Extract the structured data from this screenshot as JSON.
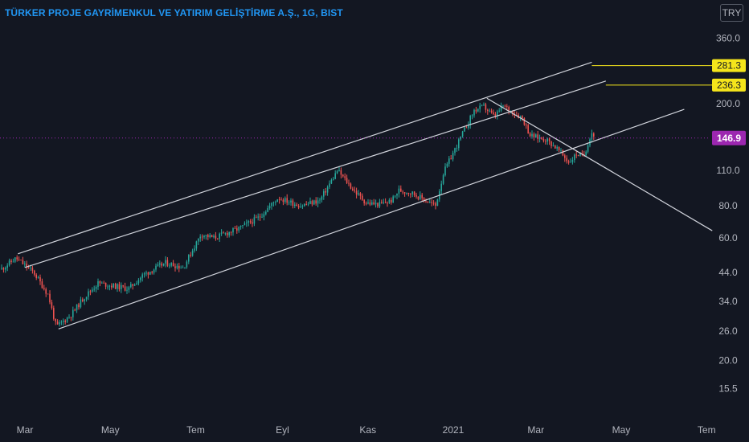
{
  "header": {
    "title": "TÜRKER PROJE GAYRİMENKUL VE YATIRIM GELİŞTİRME A.Ş., 1G, BIST",
    "currency": "TRY"
  },
  "colors": {
    "background": "#131722",
    "up": "#26a69a",
    "down": "#ef5350",
    "line": "#d1d4dc",
    "level": "#f5e51b",
    "price": "#9c27b0",
    "title": "#2196f3",
    "axis_text": "#b2b5be"
  },
  "chart_data": {
    "type": "candlestick",
    "title": "TÜRKER PROJE GAYRİMENKUL VE YATIRIM GELİŞTİRME A.Ş., 1G, BIST",
    "scale": "log",
    "ylim": [
      13,
      400
    ],
    "y_ticks": [
      "15.5",
      "20.0",
      "26.0",
      "34.0",
      "44.0",
      "60.0",
      "80.0",
      "110.0",
      "200.0",
      "360.0"
    ],
    "x_labels": [
      "Mar",
      "May",
      "Tem",
      "Eyl",
      "Kas",
      "2021",
      "Mar",
      "May",
      "Tem"
    ],
    "price_label": "146.9",
    "level_labels": [
      "281.3",
      "236.3"
    ],
    "last_price": 146.9,
    "levels": [
      281.3,
      236.3
    ],
    "path": [
      [
        0,
        45
      ],
      [
        20,
        50
      ],
      [
        42,
        44
      ],
      [
        60,
        36
      ],
      [
        70,
        27
      ],
      [
        88,
        30
      ],
      [
        104,
        35
      ],
      [
        122,
        40
      ],
      [
        160,
        38
      ],
      [
        178,
        43
      ],
      [
        206,
        48
      ],
      [
        228,
        46
      ],
      [
        250,
        62
      ],
      [
        266,
        60
      ],
      [
        296,
        65
      ],
      [
        322,
        72
      ],
      [
        346,
        86
      ],
      [
        374,
        80
      ],
      [
        398,
        84
      ],
      [
        420,
        110
      ],
      [
        440,
        92
      ],
      [
        456,
        82
      ],
      [
        472,
        81
      ],
      [
        488,
        84
      ],
      [
        496,
        92
      ],
      [
        512,
        90
      ],
      [
        542,
        80
      ],
      [
        552,
        108
      ],
      [
        572,
        145
      ],
      [
        590,
        188
      ],
      [
        602,
        195
      ],
      [
        615,
        178
      ],
      [
        626,
        196
      ],
      [
        650,
        176
      ],
      [
        660,
        150
      ],
      [
        680,
        145
      ],
      [
        694,
        133
      ],
      [
        708,
        118
      ],
      [
        718,
        128
      ],
      [
        726,
        124
      ],
      [
        736,
        155
      ],
      [
        740,
        148
      ]
    ],
    "channel_lines": [
      {
        "from": [
          "2020-02-25",
          52
        ],
        "to": [
          "2021-04-10",
          290
        ]
      },
      {
        "from": [
          "2020-03-01",
          46
        ],
        "to": [
          "2021-04-20",
          245
        ]
      },
      {
        "from": [
          "2020-03-25",
          26.5
        ],
        "to": [
          "2021-06-15",
          190
        ]
      },
      {
        "from": [
          "2021-01-25",
          210
        ],
        "to": [
          "2021-07-05",
          64
        ]
      }
    ]
  }
}
